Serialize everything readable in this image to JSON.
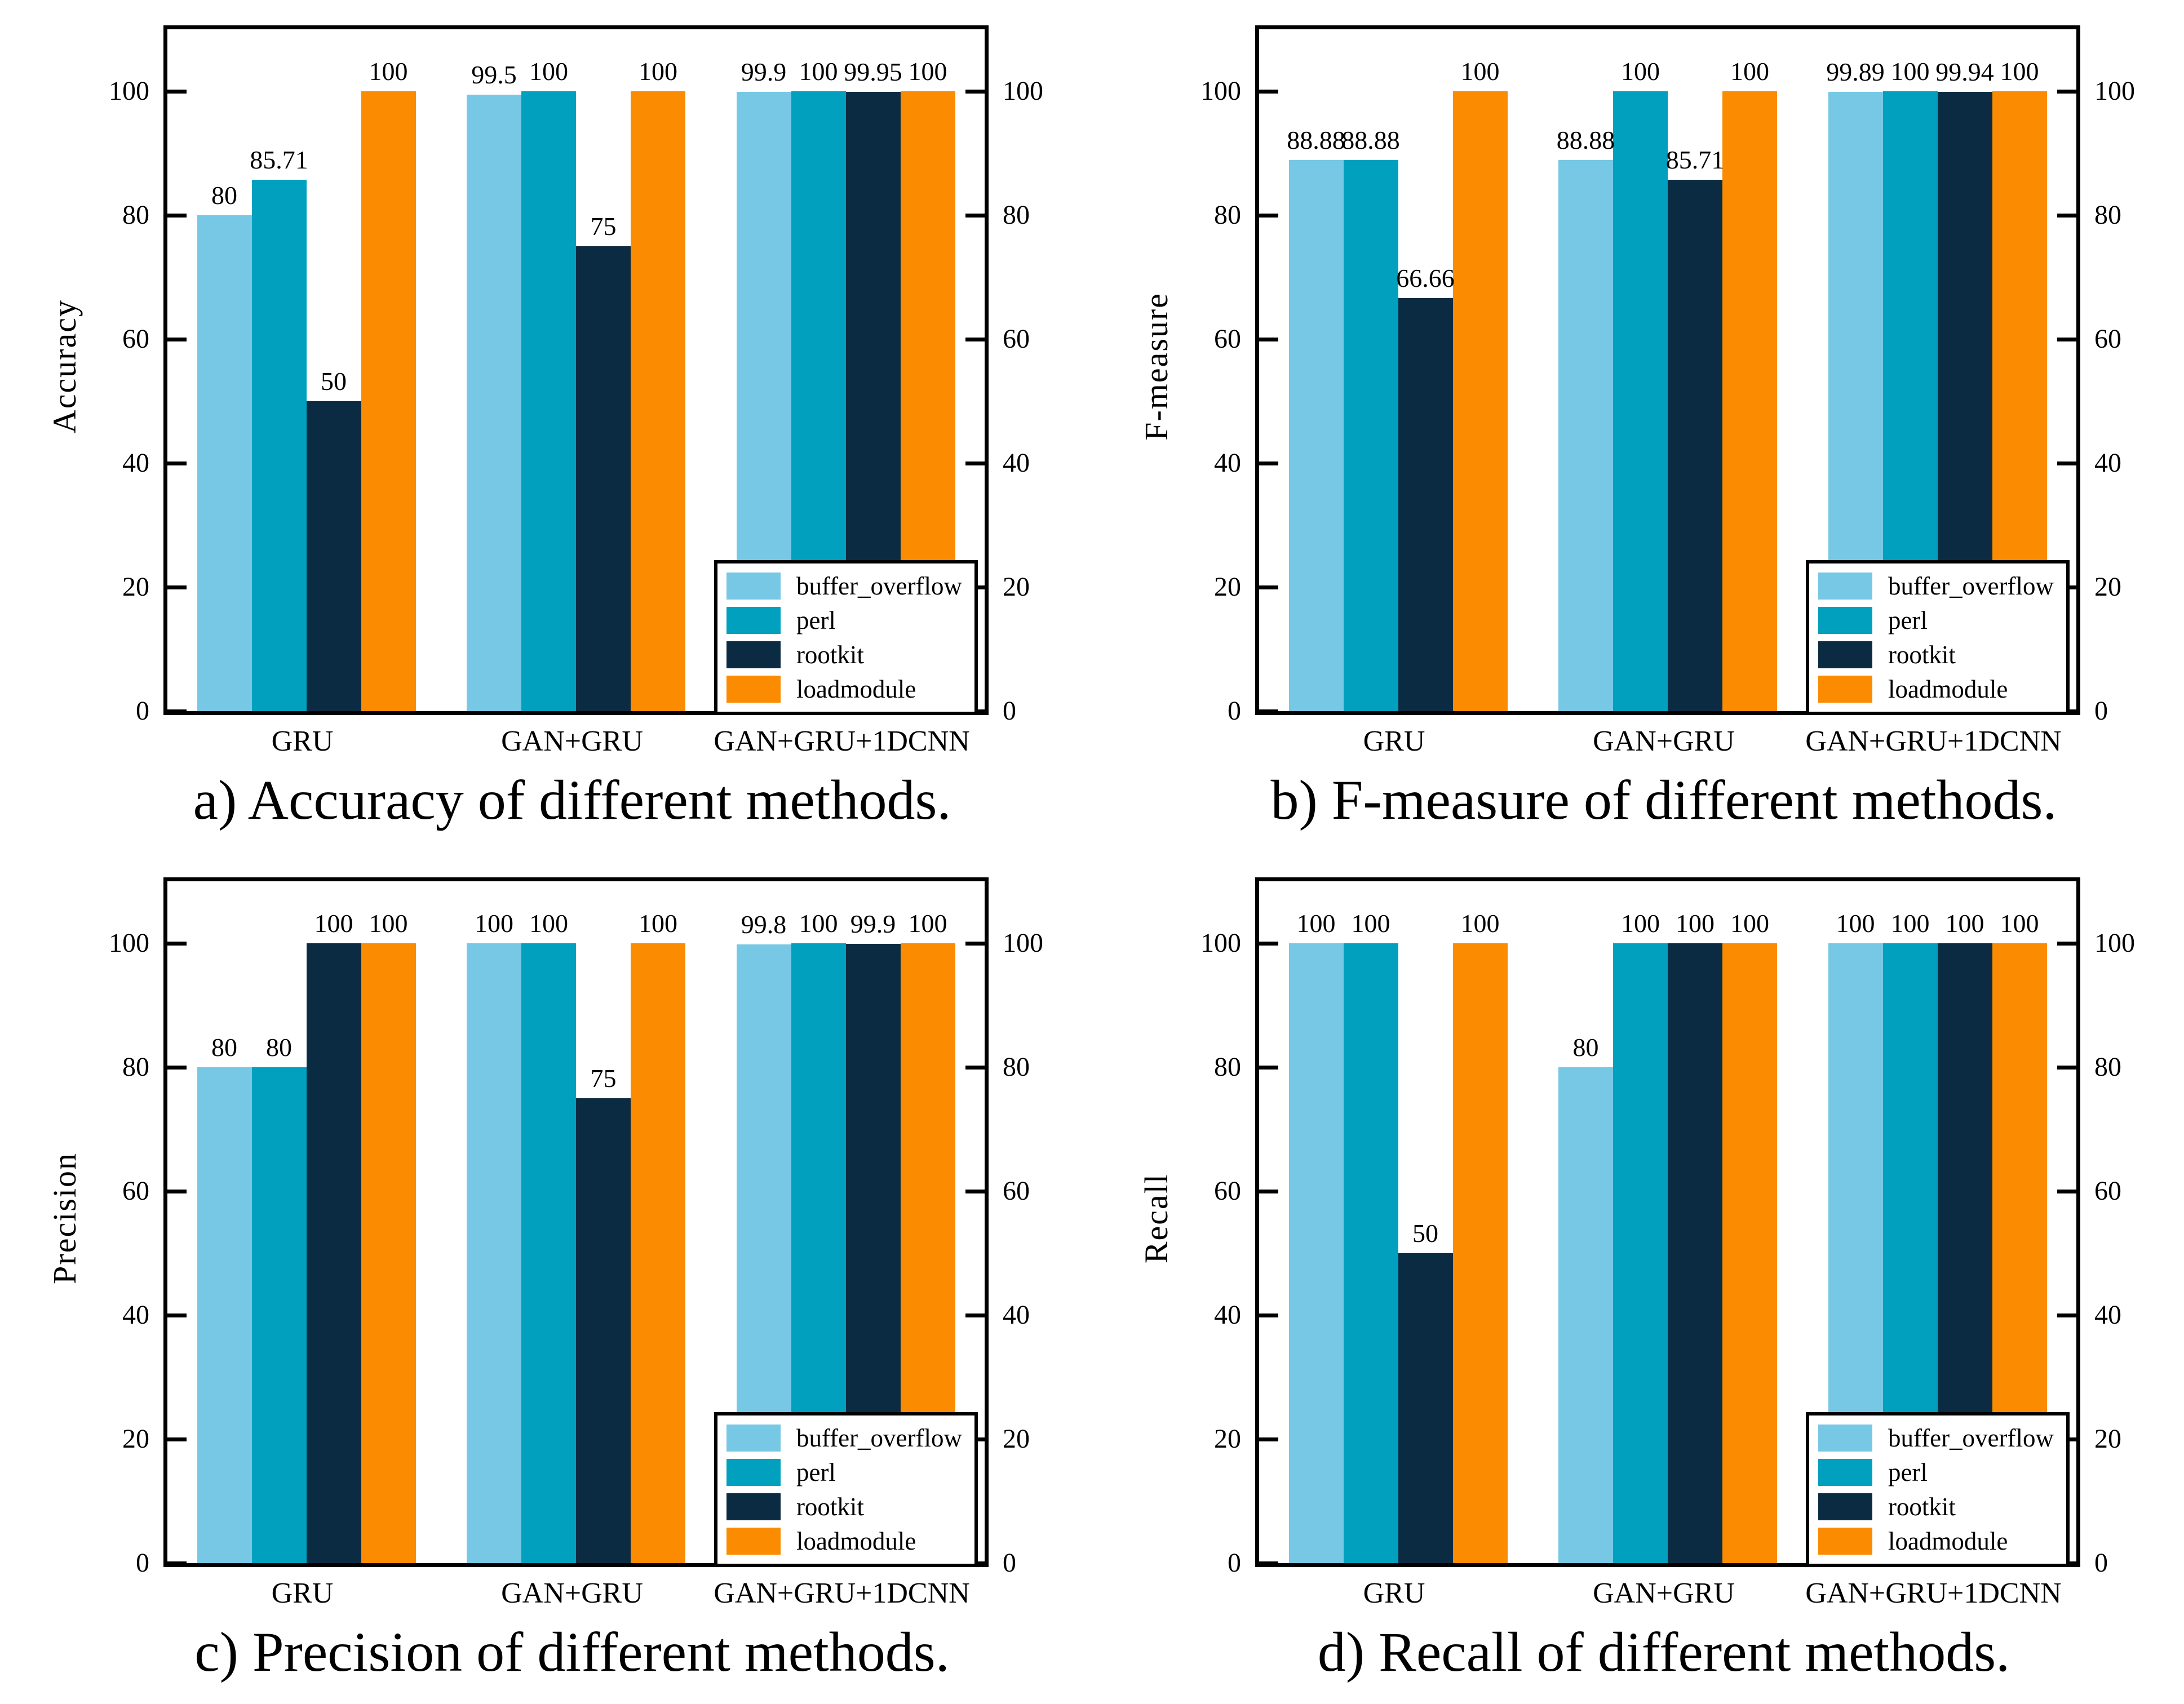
{
  "figure": {
    "background": "#ffffff",
    "layout": "2x2-grid-of-bar-charts"
  },
  "colors": {
    "buffer_overflow": "#76C8E4",
    "perl": "#00A0BE",
    "rootkit": "#0B2B42",
    "loadmodule": "#FB8B00",
    "axis": "#000000"
  },
  "legend": {
    "position": "inside-bottom-right",
    "items": [
      {
        "label": "buffer_overflow",
        "color": "#76C8E4"
      },
      {
        "label": "perl",
        "color": "#00A0BE"
      },
      {
        "label": "rootkit",
        "color": "#0B2B42"
      },
      {
        "label": "loadmodule",
        "color": "#FB8B00"
      }
    ]
  },
  "axes": {
    "ymax": 110,
    "yticks": [
      0,
      20,
      40,
      60,
      80,
      100
    ],
    "grid": false,
    "mirror_right_axis": true
  },
  "chart_data": [
    {
      "type": "bar",
      "id": "a",
      "ylabel": "Accuracy",
      "xlabel": "",
      "caption": "a) Accuracy of different methods.",
      "ylim": [
        0,
        110
      ],
      "categories": [
        "GRU",
        "GAN+GRU",
        "GAN+GRU+1DCNN"
      ],
      "series": [
        {
          "name": "buffer_overflow",
          "values": [
            80,
            99.5,
            99.9
          ]
        },
        {
          "name": "perl",
          "values": [
            85.71,
            100,
            100
          ]
        },
        {
          "name": "rootkit",
          "values": [
            50,
            75,
            99.95
          ]
        },
        {
          "name": "loadmodule",
          "values": [
            100,
            100,
            100
          ]
        }
      ]
    },
    {
      "type": "bar",
      "id": "b",
      "ylabel": "F-measure",
      "xlabel": "",
      "caption": "b) F-measure of different methods.",
      "ylim": [
        0,
        110
      ],
      "categories": [
        "GRU",
        "GAN+GRU",
        "GAN+GRU+1DCNN"
      ],
      "series": [
        {
          "name": "buffer_overflow",
          "values": [
            88.88,
            88.88,
            99.89
          ]
        },
        {
          "name": "perl",
          "values": [
            88.88,
            100,
            100
          ]
        },
        {
          "name": "rootkit",
          "values": [
            66.66,
            85.71,
            99.94
          ]
        },
        {
          "name": "loadmodule",
          "values": [
            100,
            100,
            100
          ]
        }
      ]
    },
    {
      "type": "bar",
      "id": "c",
      "ylabel": "Precision",
      "xlabel": "",
      "caption": "c) Precision of different methods.",
      "ylim": [
        0,
        110
      ],
      "categories": [
        "GRU",
        "GAN+GRU",
        "GAN+GRU+1DCNN"
      ],
      "series": [
        {
          "name": "buffer_overflow",
          "values": [
            80,
            100,
            99.8
          ]
        },
        {
          "name": "perl",
          "values": [
            80,
            100,
            100
          ]
        },
        {
          "name": "rootkit",
          "values": [
            100,
            75,
            99.9
          ]
        },
        {
          "name": "loadmodule",
          "values": [
            100,
            100,
            100
          ]
        }
      ]
    },
    {
      "type": "bar",
      "id": "d",
      "ylabel": "Recall",
      "xlabel": "",
      "caption": "d) Recall of different methods.",
      "ylim": [
        0,
        110
      ],
      "categories": [
        "GRU",
        "GAN+GRU",
        "GAN+GRU+1DCNN"
      ],
      "series": [
        {
          "name": "buffer_overflow",
          "values": [
            100,
            80,
            100
          ]
        },
        {
          "name": "perl",
          "values": [
            100,
            100,
            100
          ]
        },
        {
          "name": "rootkit",
          "values": [
            50,
            100,
            100
          ]
        },
        {
          "name": "loadmodule",
          "values": [
            100,
            100,
            100
          ]
        }
      ]
    }
  ]
}
